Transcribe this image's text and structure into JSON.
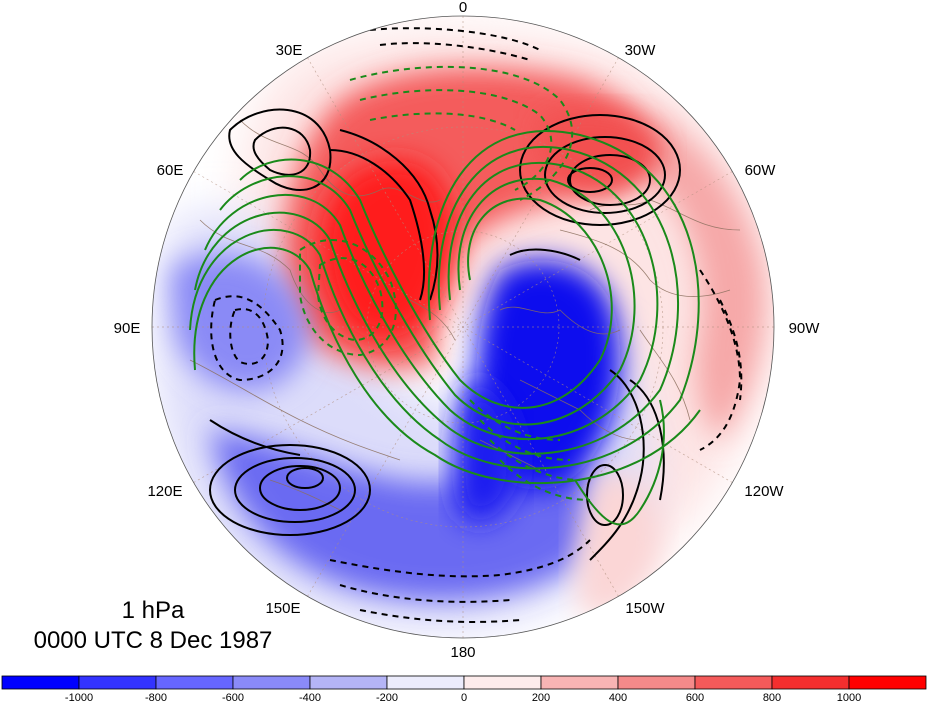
{
  "caption": {
    "level": "1 hPa",
    "time": "0000 UTC 8 Dec 1987"
  },
  "longitude_labels": {
    "deg0": "0",
    "deg30w": "30W",
    "deg60w": "60W",
    "deg90w": "90W",
    "deg120w": "120W",
    "deg150w": "150W",
    "deg180": "180",
    "deg150e": "150E",
    "deg120e": "120E",
    "deg90e": "90E",
    "deg60e": "60E",
    "deg30e": "30E"
  },
  "colorbar": {
    "tick_labels": [
      "-1000",
      "-800",
      "-600",
      "-400",
      "-200",
      "0",
      "200",
      "400",
      "600",
      "800",
      "1000"
    ],
    "colors": [
      "#0000ff",
      "#3333ff",
      "#6666ff",
      "#8a8af8",
      "#b4b4f6",
      "#ececfc",
      "#fdecec",
      "#f8b4b4",
      "#f48a8a",
      "#f45a5a",
      "#f42e2e",
      "#ff0000"
    ]
  },
  "map": {
    "projection": "north polar stereographic",
    "shading_colors": {
      "red_core": "#ff1a1a",
      "blue_core": "#0a0aee",
      "neutral": "#ffffff"
    },
    "contour_colors": {
      "black": "#000000",
      "green": "#1a8a1a",
      "coast": "#8b6f5e"
    }
  }
}
